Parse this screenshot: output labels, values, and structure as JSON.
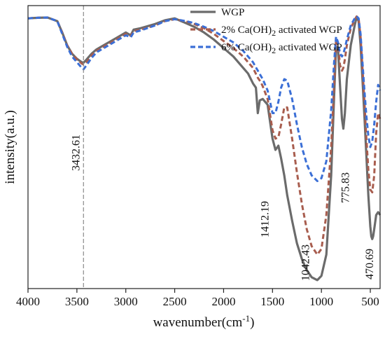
{
  "chart_data": {
    "type": "line",
    "title": "",
    "xlabel": "wavenumber(cm",
    "xlabel_sup": "-1",
    "xlabel_close": ")",
    "ylabel": "intensity(a.u.)",
    "xlim": [
      4000,
      400
    ],
    "ylim": [
      0,
      1
    ],
    "x_ticks": [
      4000,
      3500,
      3000,
      2500,
      2000,
      1500,
      1000,
      500
    ],
    "x_reversed": true,
    "y_ticks_shown": false,
    "grid": false,
    "legend_position": "top-right",
    "series": [
      {
        "name": "WGP",
        "legend_parts": [
          "WGP"
        ],
        "color": "#6b6b6b",
        "dash": "solid",
        "x": [
          4000,
          3900,
          3800,
          3700,
          3650,
          3600,
          3550,
          3500,
          3450,
          3432,
          3400,
          3350,
          3300,
          3200,
          3100,
          3000,
          2950,
          2920,
          2850,
          2700,
          2600,
          2500,
          2400,
          2300,
          2200,
          2100,
          2000,
          1900,
          1800,
          1750,
          1700,
          1670,
          1650,
          1630,
          1600,
          1550,
          1500,
          1470,
          1440,
          1412,
          1380,
          1350,
          1300,
          1250,
          1200,
          1150,
          1100,
          1042,
          1000,
          950,
          900,
          870,
          850,
          830,
          810,
          790,
          776,
          760,
          740,
          700,
          660,
          640,
          620,
          600,
          580,
          560,
          540,
          520,
          500,
          490,
          480,
          471,
          460,
          440,
          420,
          400
        ],
        "y": [
          0.955,
          0.957,
          0.958,
          0.945,
          0.905,
          0.86,
          0.83,
          0.812,
          0.8,
          0.798,
          0.81,
          0.83,
          0.845,
          0.865,
          0.885,
          0.905,
          0.895,
          0.915,
          0.92,
          0.935,
          0.948,
          0.955,
          0.94,
          0.925,
          0.905,
          0.88,
          0.85,
          0.82,
          0.78,
          0.76,
          0.725,
          0.71,
          0.62,
          0.665,
          0.67,
          0.65,
          0.53,
          0.49,
          0.505,
          0.46,
          0.4,
          0.33,
          0.24,
          0.16,
          0.105,
          0.065,
          0.04,
          0.03,
          0.045,
          0.12,
          0.4,
          0.68,
          0.855,
          0.845,
          0.72,
          0.6,
          0.565,
          0.62,
          0.74,
          0.86,
          0.93,
          0.96,
          0.945,
          0.86,
          0.74,
          0.61,
          0.47,
          0.33,
          0.22,
          0.185,
          0.175,
          0.185,
          0.21,
          0.26,
          0.27,
          0.26
        ]
      },
      {
        "name": "2% Ca(OH)2 activated WGP",
        "legend_parts": [
          "2% Ca(OH)",
          "2",
          " activated WGP"
        ],
        "color": "#a85d4e",
        "dash": "dashed",
        "x": [
          4000,
          3900,
          3800,
          3700,
          3650,
          3600,
          3550,
          3500,
          3450,
          3432,
          3400,
          3350,
          3300,
          3200,
          3100,
          3000,
          2950,
          2920,
          2850,
          2700,
          2600,
          2500,
          2400,
          2300,
          2200,
          2100,
          2000,
          1900,
          1800,
          1750,
          1700,
          1650,
          1620,
          1600,
          1550,
          1500,
          1470,
          1440,
          1412,
          1380,
          1350,
          1300,
          1250,
          1200,
          1150,
          1100,
          1042,
          1000,
          950,
          900,
          870,
          850,
          830,
          810,
          790,
          776,
          760,
          740,
          700,
          660,
          640,
          620,
          600,
          580,
          560,
          540,
          520,
          500,
          480,
          460,
          440,
          420,
          400
        ],
        "y": [
          0.955,
          0.957,
          0.958,
          0.945,
          0.905,
          0.86,
          0.83,
          0.81,
          0.795,
          0.792,
          0.8,
          0.825,
          0.84,
          0.86,
          0.88,
          0.9,
          0.893,
          0.91,
          0.915,
          0.93,
          0.945,
          0.952,
          0.945,
          0.935,
          0.92,
          0.9,
          0.875,
          0.85,
          0.82,
          0.8,
          0.78,
          0.745,
          0.73,
          0.715,
          0.67,
          0.56,
          0.53,
          0.535,
          0.58,
          0.64,
          0.64,
          0.53,
          0.41,
          0.3,
          0.21,
          0.15,
          0.12,
          0.14,
          0.26,
          0.5,
          0.72,
          0.88,
          0.86,
          0.79,
          0.77,
          0.78,
          0.81,
          0.86,
          0.92,
          0.95,
          0.962,
          0.955,
          0.89,
          0.78,
          0.66,
          0.53,
          0.42,
          0.35,
          0.34,
          0.4,
          0.55,
          0.62,
          0.6
        ]
      },
      {
        "name": "6% Ca(OH)2 activated WGP",
        "legend_parts": [
          "6% Ca(OH)",
          "2",
          " activated WGP"
        ],
        "color": "#3b6fd6",
        "dash": "dashed",
        "x": [
          4000,
          3900,
          3800,
          3700,
          3650,
          3600,
          3550,
          3500,
          3450,
          3432,
          3400,
          3350,
          3300,
          3200,
          3100,
          3000,
          2950,
          2920,
          2850,
          2700,
          2600,
          2500,
          2400,
          2300,
          2200,
          2100,
          2000,
          1900,
          1800,
          1750,
          1700,
          1650,
          1600,
          1550,
          1500,
          1470,
          1440,
          1412,
          1380,
          1350,
          1300,
          1250,
          1200,
          1150,
          1100,
          1042,
          1000,
          950,
          900,
          870,
          850,
          830,
          810,
          790,
          776,
          760,
          740,
          700,
          660,
          640,
          620,
          600,
          580,
          560,
          540,
          520,
          500,
          480,
          460,
          440,
          420,
          400
        ],
        "y": [
          0.955,
          0.957,
          0.958,
          0.945,
          0.9,
          0.855,
          0.82,
          0.8,
          0.78,
          0.775,
          0.79,
          0.815,
          0.835,
          0.855,
          0.875,
          0.895,
          0.888,
          0.905,
          0.912,
          0.93,
          0.945,
          0.952,
          0.946,
          0.938,
          0.925,
          0.91,
          0.89,
          0.87,
          0.84,
          0.82,
          0.8,
          0.77,
          0.74,
          0.7,
          0.62,
          0.62,
          0.66,
          0.71,
          0.74,
          0.735,
          0.67,
          0.58,
          0.5,
          0.44,
          0.4,
          0.38,
          0.39,
          0.45,
          0.63,
          0.8,
          0.89,
          0.87,
          0.83,
          0.82,
          0.83,
          0.85,
          0.88,
          0.93,
          0.955,
          0.962,
          0.955,
          0.9,
          0.8,
          0.7,
          0.61,
          0.54,
          0.5,
          0.52,
          0.58,
          0.66,
          0.72,
          0.7
        ]
      }
    ],
    "annotations": [
      {
        "text": "3432.61",
        "x": 3432
      },
      {
        "text": "1412.19",
        "x": 1412
      },
      {
        "text": "1042.43",
        "x": 1042
      },
      {
        "text": "775.83",
        "x": 776
      },
      {
        "text": "470.69",
        "x": 471
      }
    ],
    "reference_line": {
      "x": 3432.61,
      "style": "dashed"
    }
  }
}
